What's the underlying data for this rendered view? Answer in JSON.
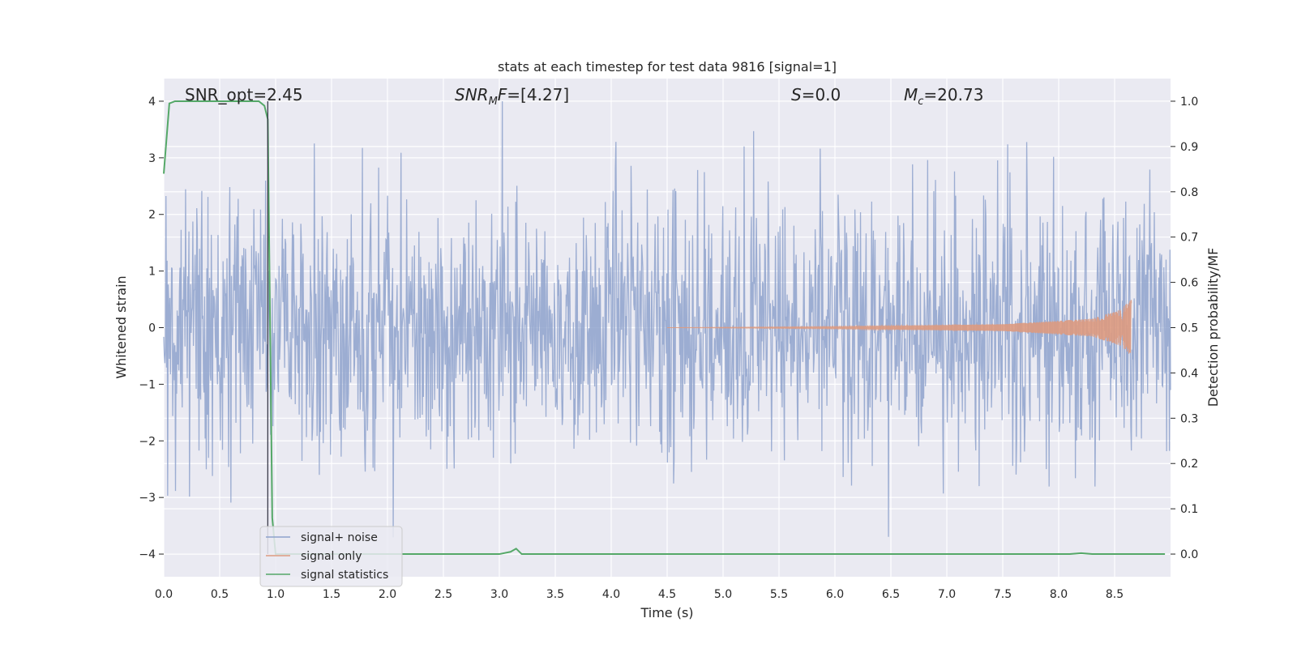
{
  "chart_data": {
    "type": "line",
    "title": "stats at each timestep for test data 9816 [signal=1]",
    "xlabel": "Time (s)",
    "ylabel": "Whitened strain",
    "ylabel_right": "Detection probability/MF",
    "xlim": [
      0,
      9.0
    ],
    "ylim": [
      -4.4,
      4.4
    ],
    "ylim_right": [
      -0.05,
      1.05
    ],
    "xticks": [
      "0.0",
      "0.5",
      "1.0",
      "1.5",
      "2.0",
      "2.5",
      "3.0",
      "3.5",
      "4.0",
      "4.5",
      "5.0",
      "5.5",
      "6.0",
      "6.5",
      "7.0",
      "7.5",
      "8.0",
      "8.5"
    ],
    "yticks_left": [
      "4",
      "3",
      "2",
      "1",
      "0",
      "−1",
      "−2",
      "−3",
      "−4"
    ],
    "yticks_right": [
      "1.0",
      "0.9",
      "0.8",
      "0.7",
      "0.6",
      "0.5",
      "0.4",
      "0.3",
      "0.2",
      "0.1",
      "0.0"
    ],
    "grid": true,
    "legend_position": "lower-left",
    "vline_x": 0.93,
    "annotations": {
      "snr_opt": "SNR_opt=2.45",
      "snr_mf": "=[4.27]",
      "s_stat": "=0.0",
      "mc": "=20.73"
    },
    "series": [
      {
        "name": "signal+ noise",
        "color": "#8ea2cc",
        "description": "whitened strain noise, roughly Gaussian, amplitude about ±2 with spikes to ±4",
        "noise_sigma": 1.0,
        "sample_count": 1800
      },
      {
        "name": "signal only",
        "color": "#dd9a7f",
        "description": "chirp signal, growing amplitude ending near t=8.65",
        "amplitude_points": [
          [
            6.0,
            0.02
          ],
          [
            7.5,
            0.06
          ],
          [
            8.3,
            0.16
          ],
          [
            8.55,
            0.32
          ],
          [
            8.65,
            0.5
          ]
        ]
      },
      {
        "name": "signal statistics",
        "color": "#55a868",
        "axis": "right",
        "x": [
          0.0,
          0.05,
          0.1,
          0.85,
          0.9,
          0.93,
          0.97,
          1.0,
          3.0,
          3.1,
          3.15,
          3.2,
          8.1,
          8.2,
          8.3,
          8.95
        ],
        "y": [
          0.84,
          0.995,
          1.0,
          1.0,
          0.99,
          0.96,
          0.08,
          0.0,
          0.0,
          0.005,
          0.012,
          0.0,
          0.0,
          0.002,
          0.0,
          0.0
        ]
      }
    ]
  }
}
